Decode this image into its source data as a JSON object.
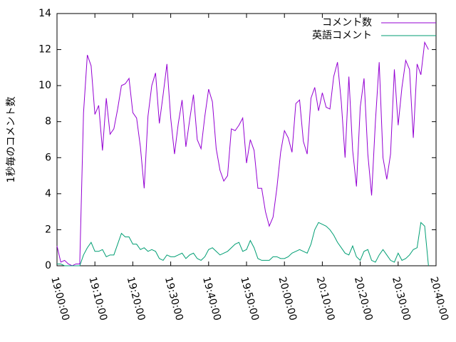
{
  "chart_data": {
    "type": "line",
    "ylabel": "1秒毎のコメント数",
    "x": [
      "19:00:00",
      "19:01:00",
      "19:02:00",
      "19:03:00",
      "19:04:00",
      "19:05:00",
      "19:06:00",
      "19:07:00",
      "19:08:00",
      "19:09:00",
      "19:10:00",
      "19:11:00",
      "19:12:00",
      "19:13:00",
      "19:14:00",
      "19:15:00",
      "19:16:00",
      "19:17:00",
      "19:18:00",
      "19:19:00",
      "19:20:00",
      "19:21:00",
      "19:22:00",
      "19:23:00",
      "19:24:00",
      "19:25:00",
      "19:26:00",
      "19:27:00",
      "19:28:00",
      "19:29:00",
      "19:30:00",
      "19:31:00",
      "19:32:00",
      "19:33:00",
      "19:34:00",
      "19:35:00",
      "19:36:00",
      "19:37:00",
      "19:38:00",
      "19:39:00",
      "19:40:00",
      "19:41:00",
      "19:42:00",
      "19:43:00",
      "19:44:00",
      "19:45:00",
      "19:46:00",
      "19:47:00",
      "19:48:00",
      "19:49:00",
      "19:50:00",
      "19:51:00",
      "19:52:00",
      "19:53:00",
      "19:54:00",
      "19:55:00",
      "19:56:00",
      "19:57:00",
      "19:58:00",
      "19:59:00",
      "20:00:00",
      "20:01:00",
      "20:02:00",
      "20:03:00",
      "20:04:00",
      "20:05:00",
      "20:06:00",
      "20:07:00",
      "20:08:00",
      "20:09:00",
      "20:10:00",
      "20:11:00",
      "20:12:00",
      "20:13:00",
      "20:14:00",
      "20:15:00",
      "20:16:00",
      "20:17:00",
      "20:18:00",
      "20:19:00",
      "20:20:00",
      "20:21:00",
      "20:22:00",
      "20:23:00",
      "20:24:00",
      "20:25:00",
      "20:26:00",
      "20:27:00",
      "20:28:00",
      "20:29:00",
      "20:30:00",
      "20:31:00",
      "20:32:00",
      "20:33:00",
      "20:34:00",
      "20:35:00",
      "20:36:00",
      "20:37:00",
      "20:38:00"
    ],
    "series": [
      {
        "name": "コメント数",
        "color": "#9400d3",
        "values": [
          1.1,
          0.2,
          0.3,
          0.1,
          0,
          0.1,
          0.1,
          8.5,
          11.7,
          11.1,
          8.4,
          8.9,
          6.4,
          9.3,
          7.3,
          7.6,
          8.7,
          10.0,
          10.1,
          10.4,
          8.5,
          8.2,
          6.6,
          4.3,
          8.3,
          10.0,
          10.7,
          7.9,
          9.5,
          11.2,
          8.2,
          6.2,
          7.9,
          9.2,
          6.6,
          8.1,
          9.5,
          7.0,
          6.5,
          8.3,
          9.8,
          9.1,
          6.5,
          5.3,
          4.7,
          5.0,
          7.6,
          7.5,
          7.8,
          8.2,
          5.7,
          7.0,
          6.4,
          4.3,
          4.3,
          3.0,
          2.2,
          2.7,
          4.3,
          6.3,
          7.5,
          7.1,
          6.3,
          9.0,
          9.2,
          6.9,
          6.2,
          9.3,
          9.9,
          8.6,
          9.6,
          8.8,
          8.7,
          10.5,
          11.3,
          9.1,
          6.0,
          10.5,
          6.4,
          4.4,
          8.8,
          10.4,
          6.2,
          3.9,
          8.0,
          11.3,
          6.0,
          4.8,
          6.2,
          10.9,
          7.8,
          9.9,
          11.4,
          10.9,
          7.1,
          11.2,
          10.6,
          12.4,
          12.0
        ]
      },
      {
        "name": "英語コメント",
        "color": "#009e73",
        "values": [
          0.1,
          0.1,
          0,
          0,
          0,
          0,
          0,
          0.6,
          1.0,
          1.3,
          0.8,
          0.8,
          0.9,
          0.5,
          0.6,
          0.6,
          1.2,
          1.8,
          1.6,
          1.6,
          1.2,
          1.2,
          0.9,
          1.0,
          0.8,
          0.9,
          0.8,
          0.4,
          0.3,
          0.6,
          0.5,
          0.5,
          0.6,
          0.7,
          0.4,
          0.6,
          0.7,
          0.4,
          0.3,
          0.5,
          0.9,
          1.0,
          0.8,
          0.6,
          0.7,
          0.8,
          1.0,
          1.2,
          1.3,
          0.8,
          0.9,
          1.4,
          1.0,
          0.4,
          0.3,
          0.3,
          0.3,
          0.5,
          0.5,
          0.4,
          0.4,
          0.5,
          0.7,
          0.8,
          0.9,
          0.8,
          0.7,
          1.2,
          2.0,
          2.4,
          2.3,
          2.2,
          2.0,
          1.7,
          1.3,
          1.0,
          0.7,
          0.6,
          1.1,
          0.5,
          0.3,
          0.8,
          0.9,
          0.3,
          0.2,
          0.6,
          0.9,
          0.6,
          0.3,
          0.2,
          0.7,
          0.3,
          0.4,
          0.6,
          0.9,
          1.0,
          2.4,
          2.2,
          0
        ]
      }
    ],
    "xlim": [
      "19:00:00",
      "20:40:00"
    ],
    "xticks": [
      "19:00:00",
      "19:10:00",
      "19:20:00",
      "19:30:00",
      "19:40:00",
      "19:50:00",
      "20:00:00",
      "20:10:00",
      "20:20:00",
      "20:30:00",
      "20:40:00"
    ],
    "ylim": [
      0,
      14
    ],
    "yticks": [
      0,
      2,
      4,
      6,
      8,
      10,
      12,
      14
    ],
    "legend": "top-right"
  }
}
